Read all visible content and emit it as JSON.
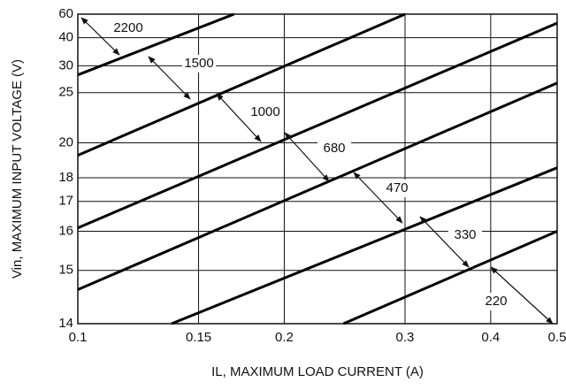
{
  "chart_data": {
    "type": "line",
    "xlabel": "IL, MAXIMUM LOAD CURRENT (A)",
    "ylabel": "Vin, MAXIMUM INPUT VOLTAGE (V)",
    "xscale": "log",
    "xlim": [
      0.1,
      0.5
    ],
    "xticks": [
      0.1,
      0.15,
      0.2,
      0.3,
      0.4,
      0.5
    ],
    "ylim": [
      14,
      60
    ],
    "yticks": [
      14,
      15,
      16,
      17,
      18,
      20,
      25,
      30,
      40,
      60
    ],
    "grid": true,
    "series": [
      {
        "color": "#000000",
        "x": [
          0.1,
          0.169
        ],
        "values": [
          28,
          60
        ]
      },
      {
        "color": "#000000",
        "x": [
          0.1,
          0.3
        ],
        "values": [
          19.2,
          60
        ]
      },
      {
        "color": "#000000",
        "x": [
          0.1,
          0.5
        ],
        "values": [
          16.1,
          50
        ]
      },
      {
        "color": "#000000",
        "x": [
          0.1,
          0.5
        ],
        "values": [
          14.6,
          26.5
        ]
      },
      {
        "color": "#000000",
        "x": [
          0.137,
          0.5
        ],
        "values": [
          14,
          18.5
        ]
      },
      {
        "color": "#000000",
        "x": [
          0.244,
          0.5
        ],
        "values": [
          14,
          16
        ]
      }
    ],
    "annotations": [
      "2200",
      "1500",
      "1000",
      "680",
      "470",
      "330",
      "220"
    ]
  }
}
